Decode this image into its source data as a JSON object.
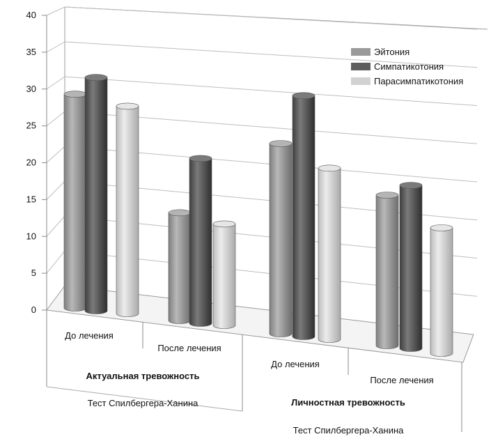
{
  "chart_data": {
    "type": "bar",
    "style": "3d-cylinder",
    "yticks": [
      0,
      5,
      10,
      15,
      20,
      25,
      30,
      35,
      40
    ],
    "ylim": [
      0,
      40
    ],
    "grid": true,
    "legend_position": "top-right",
    "categories": [
      {
        "label": "До лечения",
        "group": "Актуальная тревожность",
        "test": "Тест Спилбергера-Ханина"
      },
      {
        "label": "После лечения",
        "group": "Актуальная тревожность",
        "test": "Тест Спилбергера-Ханина"
      },
      {
        "label": "До лечения",
        "group": "Личностная тревожность",
        "test": "Тест Спилбергера-Ханина"
      },
      {
        "label": "После лечения",
        "group": "Личностная тревожность",
        "test": "Тест Спилбергера-Ханина"
      }
    ],
    "groups": [
      {
        "label": "Актуальная тревожность",
        "test": "Тест Спилбергера-Ханина"
      },
      {
        "label": "Личностная тревожность",
        "test": "Тест Спилбергера-Ханина"
      }
    ],
    "series": [
      {
        "name": "Эйтония",
        "color": "#9a9a9a",
        "values": [
          33,
          17,
          30,
          24
        ]
      },
      {
        "name": "Симпатикотония",
        "color": "#5e5e5e",
        "values": [
          36,
          26,
          38,
          26
        ]
      },
      {
        "name": "Парасимпатикотония",
        "color": "#d2d2d2",
        "values": [
          32,
          16,
          27,
          20
        ]
      }
    ]
  }
}
